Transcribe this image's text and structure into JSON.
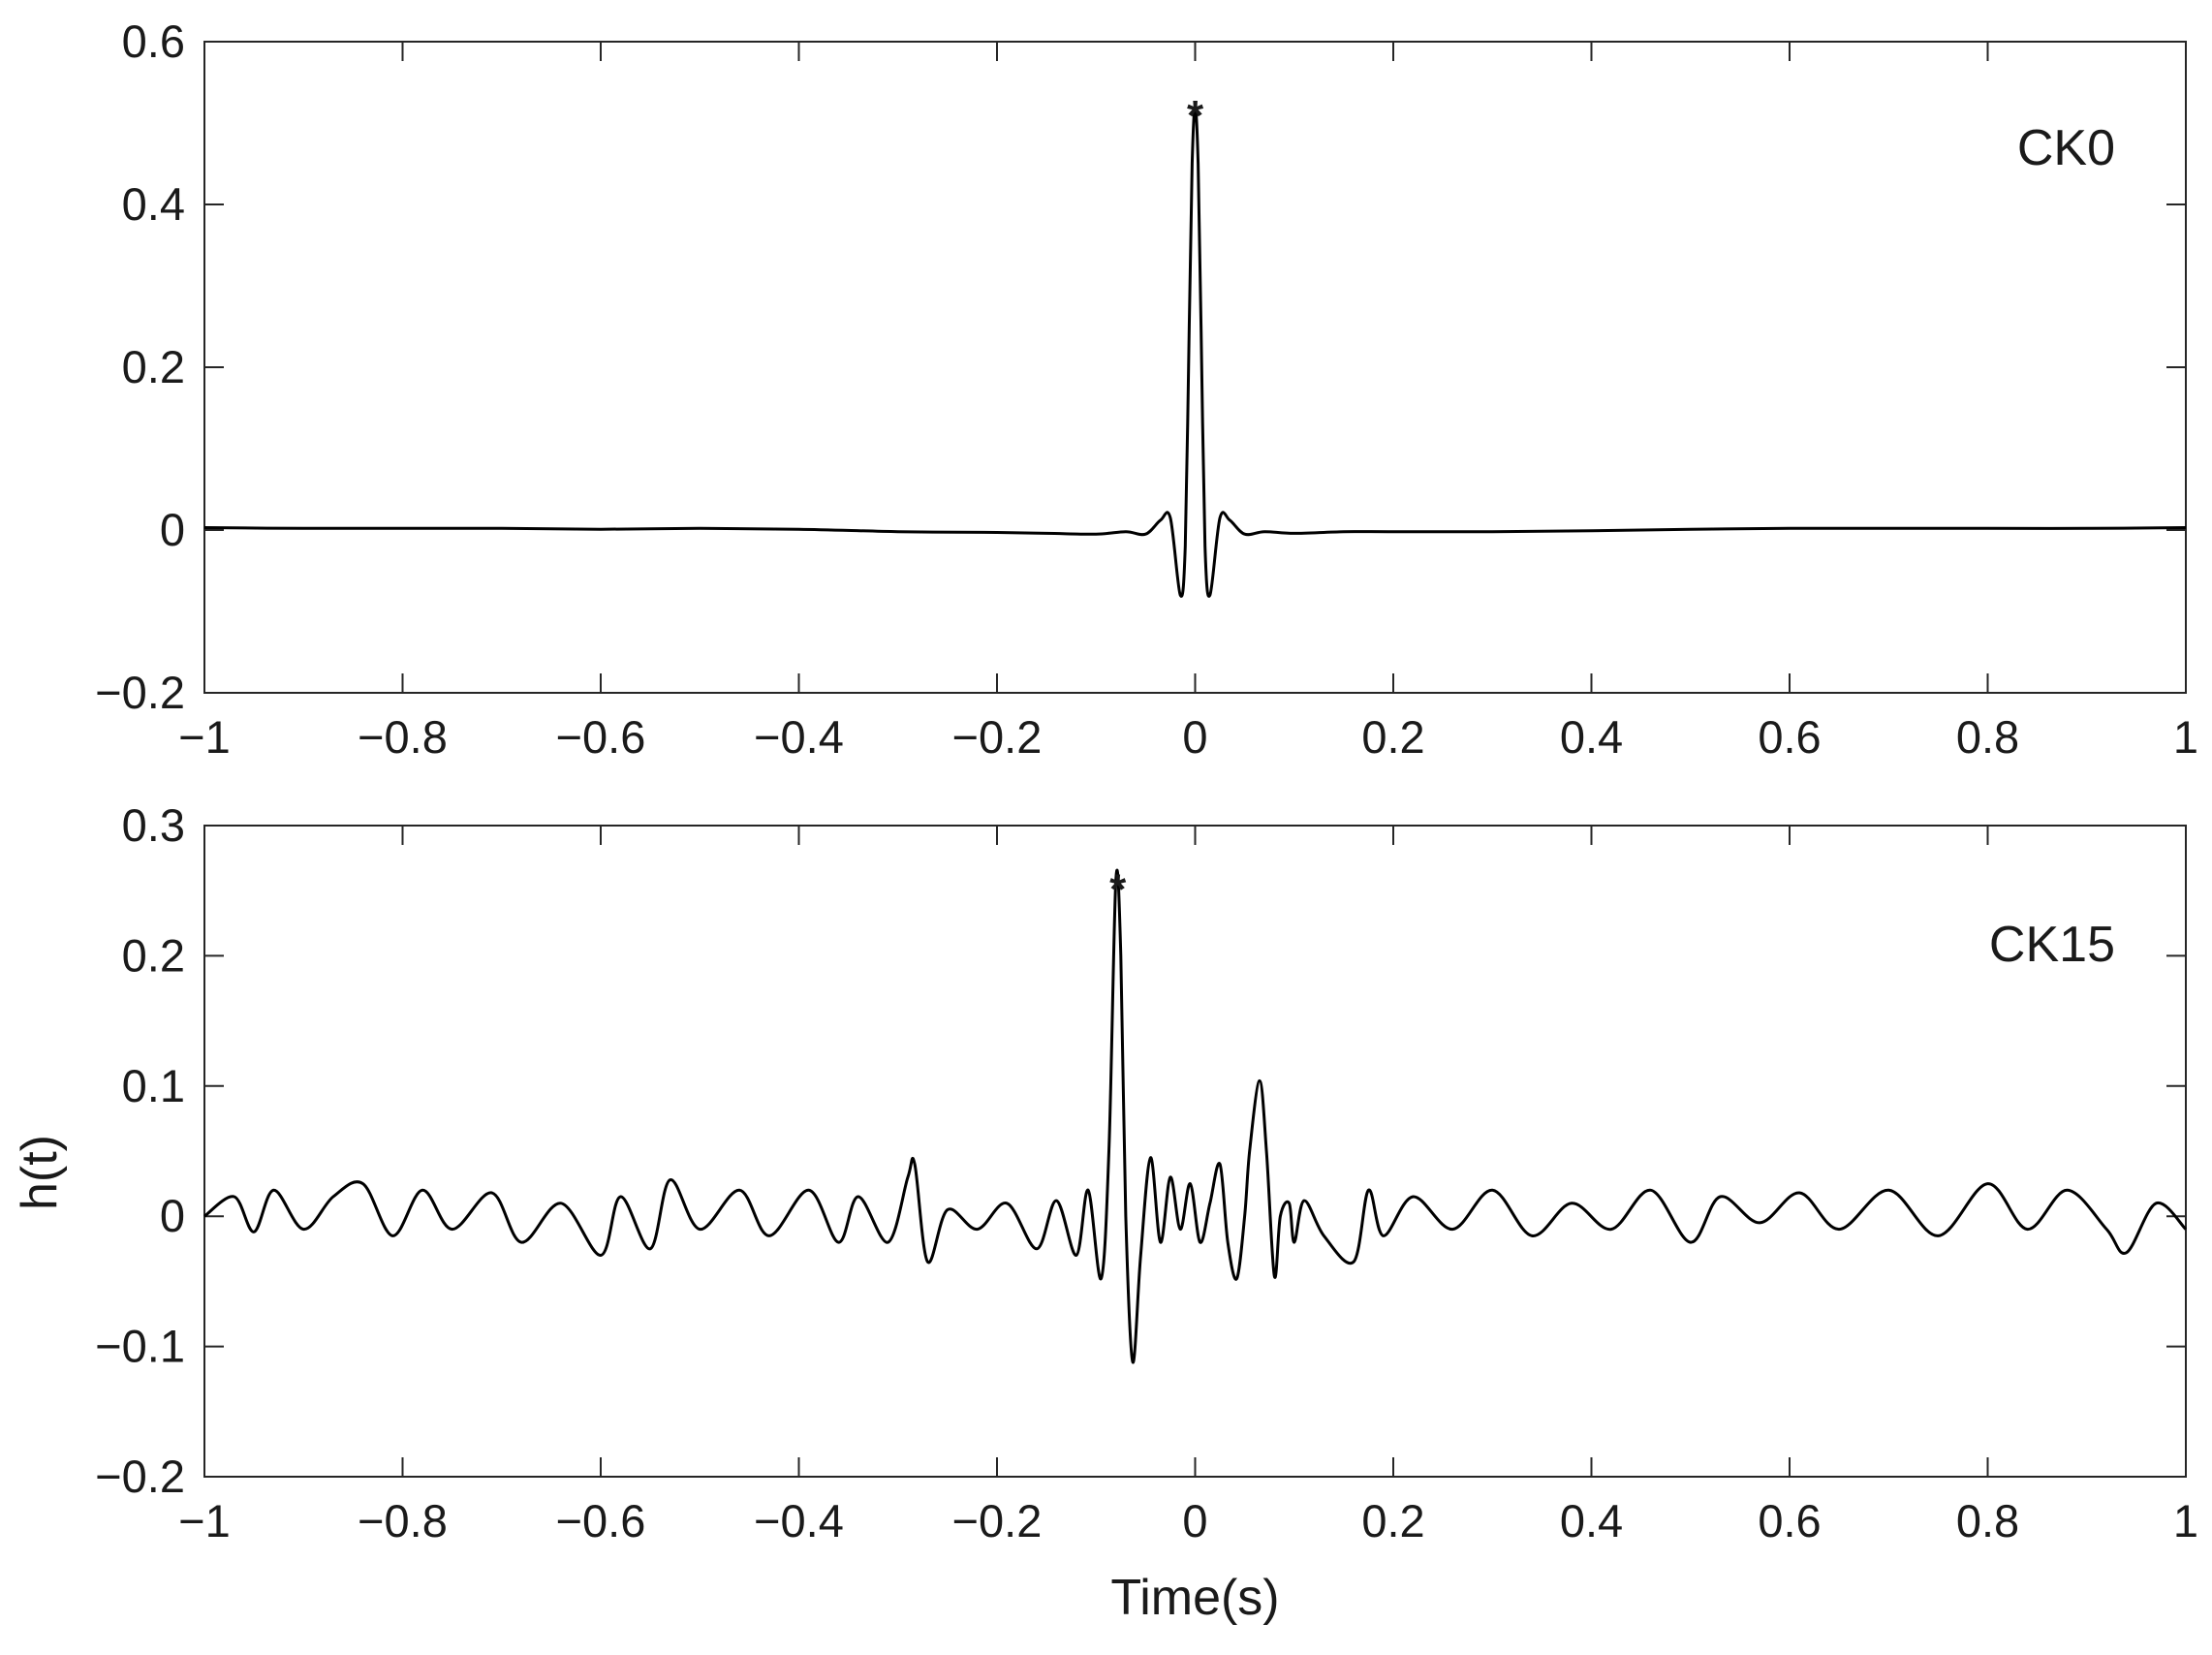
{
  "chart_data": [
    {
      "type": "line",
      "panel_label": "CK0",
      "xlim": [
        -1,
        1
      ],
      "ylim": [
        -0.2,
        0.6
      ],
      "xticks": [
        -1,
        -0.8,
        -0.6,
        -0.4,
        -0.2,
        0,
        0.2,
        0.4,
        0.6,
        0.8,
        1
      ],
      "xtick_labels": [
        "−1",
        "−0.8",
        "−0.6",
        "−0.4",
        "−0.2",
        "0",
        "0.2",
        "0.4",
        "0.6",
        "0.8",
        "1"
      ],
      "yticks": [
        -0.2,
        0,
        0.2,
        0.4,
        0.6
      ],
      "ytick_labels": [
        "−0.2",
        "0",
        "0.2",
        "0.4",
        "0.6"
      ],
      "grid": false,
      "line_color": "#000000",
      "marker_label": "*",
      "series": [
        {
          "x": [
            -1.0,
            -0.9,
            -0.8,
            -0.7,
            -0.6,
            -0.5,
            -0.4,
            -0.3,
            -0.2,
            -0.15,
            -0.1,
            -0.07,
            -0.05,
            -0.035,
            -0.025,
            -0.015,
            -0.01,
            -0.006,
            -0.003,
            0.0,
            0.003,
            0.006,
            0.01,
            0.015,
            0.025,
            0.035,
            0.05,
            0.07,
            0.1,
            0.15,
            0.2,
            0.3,
            0.4,
            0.5,
            0.6,
            0.7,
            0.8,
            0.9,
            1.0
          ],
          "y": [
            0.003,
            0.002,
            0.002,
            0.002,
            0.001,
            0.002,
            0.001,
            -0.002,
            -0.003,
            -0.004,
            -0.005,
            -0.002,
            -0.005,
            0.012,
            0.015,
            -0.08,
            -0.02,
            0.25,
            0.45,
            0.52,
            0.45,
            0.25,
            -0.02,
            -0.08,
            0.015,
            0.012,
            -0.005,
            -0.002,
            -0.004,
            -0.002,
            -0.002,
            -0.002,
            -0.001,
            0.001,
            0.002,
            0.002,
            0.002,
            0.002,
            0.003
          ]
        }
      ],
      "peak": {
        "x": 0.0,
        "y": 0.52
      }
    },
    {
      "type": "line",
      "panel_label": "CK15",
      "xlim": [
        -1,
        1
      ],
      "ylim": [
        -0.2,
        0.3
      ],
      "xticks": [
        -1,
        -0.8,
        -0.6,
        -0.4,
        -0.2,
        0,
        0.2,
        0.4,
        0.6,
        0.8,
        1
      ],
      "xtick_labels": [
        "−1",
        "−0.8",
        "−0.6",
        "−0.4",
        "−0.2",
        "0",
        "0.2",
        "0.4",
        "0.6",
        "0.8",
        "1"
      ],
      "yticks": [
        -0.2,
        -0.1,
        0,
        0.1,
        0.2,
        0.3
      ],
      "ytick_labels": [
        "−0.2",
        "−0.1",
        "0",
        "0.1",
        "0.2",
        "0.3"
      ],
      "xlabel": "Time(s)",
      "ylabel": "h(t)",
      "grid": false,
      "line_color": "#000000",
      "marker_label": "*",
      "series": [
        {
          "x": [
            -1.0,
            -0.97,
            -0.95,
            -0.93,
            -0.9,
            -0.87,
            -0.84,
            -0.81,
            -0.78,
            -0.75,
            -0.71,
            -0.68,
            -0.64,
            -0.6,
            -0.58,
            -0.55,
            -0.53,
            -0.5,
            -0.46,
            -0.43,
            -0.39,
            -0.36,
            -0.34,
            -0.31,
            -0.29,
            -0.283,
            -0.27,
            -0.25,
            -0.22,
            -0.19,
            -0.16,
            -0.14,
            -0.12,
            -0.108,
            -0.095,
            -0.087,
            -0.08,
            -0.075,
            -0.07,
            -0.063,
            -0.055,
            -0.045,
            -0.035,
            -0.025,
            -0.015,
            -0.005,
            0.005,
            0.015,
            0.025,
            0.033,
            0.042,
            0.05,
            0.055,
            0.065,
            0.072,
            0.08,
            0.086,
            0.095,
            0.1,
            0.11,
            0.13,
            0.16,
            0.175,
            0.19,
            0.22,
            0.26,
            0.3,
            0.34,
            0.38,
            0.42,
            0.46,
            0.5,
            0.53,
            0.57,
            0.61,
            0.65,
            0.7,
            0.75,
            0.8,
            0.84,
            0.88,
            0.92,
            0.94,
            0.97,
            1.0
          ],
          "y": [
            0.0,
            0.015,
            -0.012,
            0.02,
            -0.01,
            0.015,
            0.025,
            -0.015,
            0.02,
            -0.01,
            0.018,
            -0.02,
            0.01,
            -0.03,
            0.015,
            -0.025,
            0.028,
            -0.01,
            0.02,
            -0.015,
            0.02,
            -0.02,
            0.015,
            -0.02,
            0.03,
            0.04,
            -0.035,
            0.005,
            -0.01,
            0.01,
            -0.025,
            0.012,
            -0.03,
            0.02,
            -0.048,
            0.05,
            0.258,
            0.2,
            0.0,
            -0.112,
            -0.03,
            0.045,
            -0.02,
            0.03,
            -0.01,
            0.025,
            -0.02,
            0.01,
            0.04,
            -0.02,
            -0.048,
            0.0,
            0.05,
            0.104,
            0.05,
            -0.046,
            0.0,
            0.01,
            -0.02,
            0.012,
            -0.015,
            -0.035,
            0.02,
            -0.015,
            0.015,
            -0.01,
            0.02,
            -0.015,
            0.01,
            -0.01,
            0.02,
            -0.02,
            0.015,
            -0.005,
            0.018,
            -0.01,
            0.02,
            -0.015,
            0.025,
            -0.01,
            0.02,
            -0.01,
            -0.028,
            0.01,
            -0.01
          ]
        }
      ],
      "peak": {
        "x": -0.078,
        "y": 0.258
      }
    }
  ]
}
